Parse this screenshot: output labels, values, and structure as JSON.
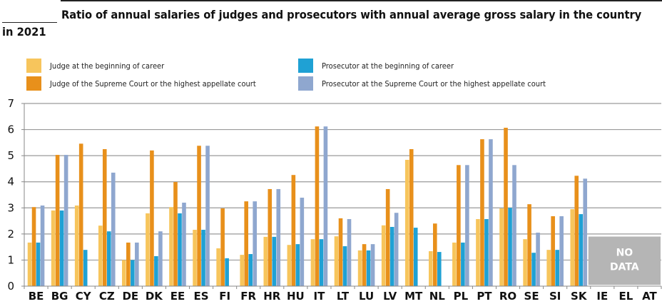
{
  "chart_data": {
    "type": "bar",
    "title": "Ratio of annual salaries of judges and prosecutors with annual average gross salary in the country",
    "title_line2": "in 2021",
    "xlabel": "",
    "ylabel": "",
    "ylim": [
      0,
      7
    ],
    "yticks": [
      "0",
      "1",
      "2",
      "3",
      "4",
      "5",
      "6",
      "7"
    ],
    "grid": true,
    "legend_position": "top",
    "categories": [
      "BE",
      "BG",
      "CY",
      "CZ",
      "DE",
      "DK",
      "EE",
      "ES",
      "FI",
      "FR",
      "HR",
      "HU",
      "IT",
      "LT",
      "LU",
      "LV",
      "MT",
      "NL",
      "PL",
      "PT",
      "RO",
      "SE",
      "SI",
      "SK",
      "IE",
      "EL",
      "AT"
    ],
    "series": [
      {
        "name": "Judge at the beginning of career",
        "color": "#F7C55C",
        "values": [
          1.67,
          2.9,
          3.09,
          2.32,
          1.0,
          2.79,
          3.03,
          2.16,
          1.45,
          1.2,
          1.89,
          1.58,
          1.8,
          1.91,
          1.37,
          2.33,
          4.84,
          1.34,
          1.67,
          2.57,
          2.98,
          1.8,
          1.39,
          2.95,
          null,
          null,
          null
        ]
      },
      {
        "name": "Judge of the Supreme Court or the highest appellate court",
        "color": "#E8901B",
        "values": [
          3.03,
          5.03,
          5.46,
          5.25,
          1.67,
          5.2,
          3.99,
          5.38,
          2.98,
          3.25,
          3.72,
          4.26,
          6.12,
          2.6,
          1.61,
          3.72,
          5.25,
          2.4,
          4.64,
          5.63,
          6.07,
          3.14,
          2.68,
          4.23,
          null,
          null,
          null
        ]
      },
      {
        "name": "Prosecutor at the beginning of career",
        "color": "#1FA1D4",
        "values": [
          1.67,
          2.9,
          1.39,
          2.1,
          1.0,
          1.15,
          2.79,
          2.16,
          1.07,
          1.23,
          1.89,
          1.61,
          1.8,
          1.53,
          1.37,
          2.27,
          2.24,
          1.31,
          1.67,
          2.57,
          3.0,
          1.28,
          1.39,
          2.76,
          null,
          null,
          null
        ]
      },
      {
        "name": "Prosecutor at the Supreme Court or the highest appellate court",
        "color": "#8FA7CF",
        "values": [
          3.09,
          5.03,
          null,
          4.35,
          1.67,
          2.1,
          3.2,
          5.38,
          null,
          3.25,
          3.72,
          3.39,
          6.12,
          2.57,
          1.61,
          2.81,
          null,
          null,
          4.64,
          5.63,
          4.64,
          2.05,
          2.68,
          4.12,
          null,
          null,
          null
        ]
      }
    ],
    "no_data": {
      "label_line1": "NO",
      "label_line2": "DATA",
      "categories": [
        "IE",
        "EL",
        "AT"
      ],
      "color": "#B5B5B5"
    }
  }
}
